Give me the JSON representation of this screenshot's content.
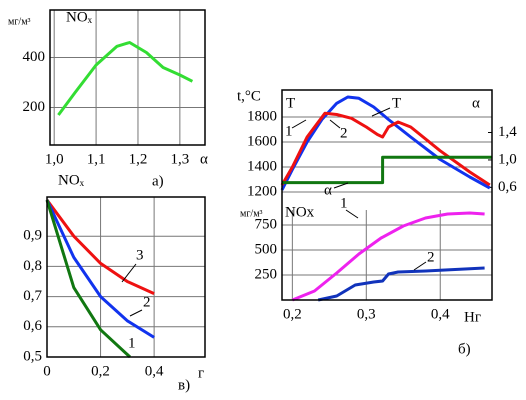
{
  "chart_data": [
    {
      "type": "line",
      "caption": "а)",
      "y_unit": "мг/м³",
      "ylabel": "NOₓ",
      "xlabel": "α",
      "xlim": [
        0.99,
        1.36
      ],
      "ylim": [
        50,
        590
      ],
      "xticks": [
        {
          "value": 1.0,
          "label": "1,0"
        },
        {
          "value": 1.1,
          "label": "1,1"
        },
        {
          "value": 1.2,
          "label": "1,2"
        },
        {
          "value": 1.3,
          "label": "1,3"
        }
      ],
      "yticks": [
        200,
        400
      ],
      "grid": true,
      "color": "#33dd33",
      "x": [
        1.01,
        1.05,
        1.1,
        1.15,
        1.18,
        1.22,
        1.26,
        1.3,
        1.33
      ],
      "values": [
        170,
        260,
        370,
        445,
        460,
        420,
        360,
        330,
        305
      ]
    },
    {
      "type": "line",
      "caption": "в)",
      "ylabel": "NOₓ",
      "xlabel": "г",
      "xlim": [
        0,
        0.59
      ],
      "ylim": [
        0.5,
        1.03
      ],
      "xticks": [
        0,
        {
          "value": 0.2,
          "label": "0,2"
        },
        {
          "value": 0.4,
          "label": "0,4"
        }
      ],
      "yticks": [
        {
          "value": 0.5,
          "label": "0,5"
        },
        {
          "value": 0.6,
          "label": "0,6"
        },
        {
          "value": 0.7,
          "label": "0,7"
        },
        {
          "value": 0.8,
          "label": "0,8"
        },
        {
          "value": 0.9,
          "label": "0,9"
        }
      ],
      "grid": true,
      "series": [
        {
          "name": "3",
          "color": "#ee1111",
          "x": [
            0,
            0.1,
            0.2,
            0.3,
            0.4
          ],
          "values": [
            1.02,
            0.9,
            0.81,
            0.75,
            0.71
          ]
        },
        {
          "name": "2",
          "color": "#1133ee",
          "x": [
            0,
            0.1,
            0.2,
            0.3,
            0.4
          ],
          "values": [
            1.02,
            0.83,
            0.7,
            0.62,
            0.565
          ]
        },
        {
          "name": "1",
          "color": "#117711",
          "x": [
            0,
            0.1,
            0.2,
            0.31
          ],
          "values": [
            1.02,
            0.73,
            0.59,
            0.5
          ]
        }
      ]
    },
    {
      "type": "line",
      "caption": "б)",
      "ytitle": "t,°C",
      "ylabel": "T",
      "y2label": "α",
      "annotation": "T",
      "xlim": [
        0.186,
        0.47
      ],
      "ylim": [
        1056,
        2016
      ],
      "y2lim": [
        0.27,
        2.02
      ],
      "yticks": [
        1200,
        1400,
        1600,
        1800
      ],
      "y2ticks": [
        {
          "value": 0.6,
          "label": "0,6"
        },
        {
          "value": 1.0,
          "label": "1,0"
        },
        {
          "value": 1.4,
          "label": "1,4"
        }
      ],
      "grid": true,
      "series": [
        {
          "name": "1",
          "color": "#1133ee",
          "x": [
            0.186,
            0.2,
            0.22,
            0.24,
            0.26,
            0.275,
            0.29,
            0.31,
            0.33,
            0.36,
            0.4,
            0.44,
            0.467
          ],
          "values": [
            1216,
            1380,
            1600,
            1780,
            1910,
            1960,
            1950,
            1880,
            1780,
            1640,
            1460,
            1320,
            1232
          ]
        },
        {
          "name": "2",
          "color": "#ee1111",
          "x": [
            0.186,
            0.2,
            0.22,
            0.244,
            0.26,
            0.28,
            0.3,
            0.315,
            0.322,
            0.33,
            0.343,
            0.36,
            0.4,
            0.44,
            0.467
          ],
          "values": [
            1256,
            1400,
            1640,
            1830,
            1820,
            1790,
            1720,
            1660,
            1640,
            1720,
            1760,
            1720,
            1530,
            1360,
            1256
          ]
        },
        {
          "name": "α",
          "color": "#117711",
          "axis": "y2",
          "x": [
            0.186,
            0.322,
            0.322,
            0.47
          ],
          "values": [
            0.67,
            0.67,
            1.04,
            1.04
          ]
        }
      ]
    },
    {
      "type": "line",
      "y_unit": "мг/м³",
      "ylabel": "NOx",
      "xlabel": "Hг",
      "xlim": [
        0.186,
        0.47
      ],
      "ylim": [
        0,
        900
      ],
      "xticks": [
        {
          "value": 0.2,
          "label": "0,2"
        },
        {
          "value": 0.3,
          "label": "0,3"
        },
        {
          "value": 0.4,
          "label": "0,4"
        }
      ],
      "yticks": [
        250,
        500,
        750
      ],
      "grid": true,
      "series": [
        {
          "name": "1",
          "color": "#ee22ee",
          "x": [
            0.2,
            0.23,
            0.26,
            0.29,
            0.32,
            0.35,
            0.38,
            0.41,
            0.44,
            0.46
          ],
          "values": [
            0,
            90,
            270,
            460,
            620,
            740,
            820,
            860,
            870,
            860
          ]
        },
        {
          "name": "2",
          "color": "#1133bb",
          "x": [
            0.235,
            0.26,
            0.285,
            0.31,
            0.322,
            0.33,
            0.343,
            0.38,
            0.42,
            0.46
          ],
          "values": [
            0,
            40,
            150,
            180,
            190,
            260,
            280,
            290,
            305,
            320
          ]
        }
      ]
    }
  ]
}
